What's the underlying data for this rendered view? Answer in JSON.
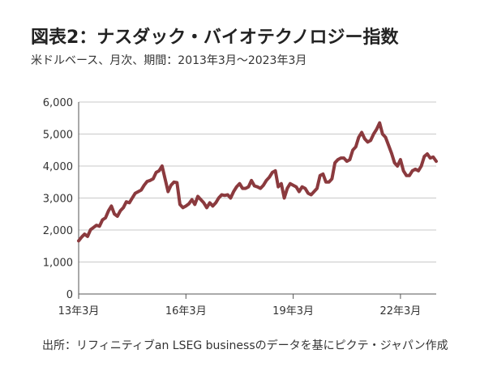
{
  "title": "図表2：ナスダック・バイオテクノロジー指数",
  "subtitle": "米ドルベース、月次、期間：2013年3月～2023年3月",
  "source": "出所：リフィニティブan LSEG businessのデータを基にピクテ・ジャパン作成",
  "colors": {
    "line": "#8b3a3e",
    "grid": "#c8c8c8",
    "axis": "#555555"
  },
  "chart_data": {
    "type": "line",
    "x_tick_labels": [
      "13年3月",
      "16年3月",
      "19年3月",
      "22年3月"
    ],
    "x_tick_dates": [
      "2013-03",
      "2016-03",
      "2019-03",
      "2022-03"
    ],
    "xlim": [
      "2013-03",
      "2023-03"
    ],
    "ylim": [
      0,
      6000
    ],
    "y_ticks": [
      0,
      1000,
      2000,
      3000,
      4000,
      5000,
      6000
    ],
    "y_tick_labels": [
      "0",
      "1,000",
      "2,000",
      "3,000",
      "4,000",
      "5,000",
      "6,000"
    ],
    "grid": "horizontal",
    "series": [
      {
        "dates": [
          "2013-03",
          "2013-04",
          "2013-05",
          "2013-06",
          "2013-07",
          "2013-08",
          "2013-09",
          "2013-10",
          "2013-11",
          "2013-12",
          "2014-01",
          "2014-02",
          "2014-03",
          "2014-04",
          "2014-05",
          "2014-06",
          "2014-07",
          "2014-08",
          "2014-09",
          "2014-10",
          "2014-11",
          "2014-12",
          "2015-01",
          "2015-02",
          "2015-03",
          "2015-04",
          "2015-05",
          "2015-06",
          "2015-07",
          "2015-08",
          "2015-09",
          "2015-10",
          "2015-11",
          "2015-12",
          "2016-01",
          "2016-02",
          "2016-03",
          "2016-04",
          "2016-05",
          "2016-06",
          "2016-07",
          "2016-08",
          "2016-09",
          "2016-10",
          "2016-11",
          "2016-12",
          "2017-01",
          "2017-02",
          "2017-03",
          "2017-04",
          "2017-05",
          "2017-06",
          "2017-07",
          "2017-08",
          "2017-09",
          "2017-10",
          "2017-11",
          "2017-12",
          "2018-01",
          "2018-02",
          "2018-03",
          "2018-04",
          "2018-05",
          "2018-06",
          "2018-07",
          "2018-08",
          "2018-09",
          "2018-10",
          "2018-11",
          "2018-12",
          "2019-01",
          "2019-02",
          "2019-03",
          "2019-04",
          "2019-05",
          "2019-06",
          "2019-07",
          "2019-08",
          "2019-09",
          "2019-10",
          "2019-11",
          "2019-12",
          "2020-01",
          "2020-02",
          "2020-03",
          "2020-04",
          "2020-05",
          "2020-06",
          "2020-07",
          "2020-08",
          "2020-09",
          "2020-10",
          "2020-11",
          "2020-12",
          "2021-01",
          "2021-02",
          "2021-03",
          "2021-04",
          "2021-05",
          "2021-06",
          "2021-07",
          "2021-08",
          "2021-09",
          "2021-10",
          "2021-11",
          "2021-12",
          "2022-01",
          "2022-02",
          "2022-03",
          "2022-04",
          "2022-05",
          "2022-06",
          "2022-07",
          "2022-08",
          "2022-09",
          "2022-10",
          "2022-11",
          "2022-12",
          "2023-01",
          "2023-02",
          "2023-03"
        ],
        "values": [
          1660,
          1780,
          1870,
          1800,
          2010,
          2080,
          2150,
          2120,
          2320,
          2380,
          2600,
          2750,
          2500,
          2430,
          2600,
          2700,
          2880,
          2850,
          3000,
          3150,
          3200,
          3250,
          3400,
          3520,
          3550,
          3600,
          3800,
          3850,
          4000,
          3600,
          3200,
          3400,
          3500,
          3480,
          2800,
          2700,
          2750,
          2820,
          2950,
          2800,
          3050,
          2950,
          2850,
          2700,
          2850,
          2750,
          2850,
          3000,
          3100,
          3080,
          3100,
          3000,
          3200,
          3350,
          3450,
          3300,
          3300,
          3350,
          3550,
          3380,
          3350,
          3300,
          3400,
          3550,
          3650,
          3800,
          3850,
          3350,
          3450,
          3000,
          3300,
          3450,
          3400,
          3350,
          3200,
          3350,
          3300,
          3150,
          3100,
          3200,
          3300,
          3700,
          3750,
          3500,
          3500,
          3600,
          4100,
          4200,
          4250,
          4250,
          4150,
          4200,
          4500,
          4600,
          4900,
          5050,
          4850,
          4750,
          4800,
          5000,
          5150,
          5350,
          5000,
          4900,
          4650,
          4400,
          4100,
          4000,
          4200,
          3850,
          3700,
          3700,
          3850,
          3900,
          3850,
          4000,
          4300,
          4380,
          4250,
          4280,
          4150
        ]
      }
    ]
  }
}
